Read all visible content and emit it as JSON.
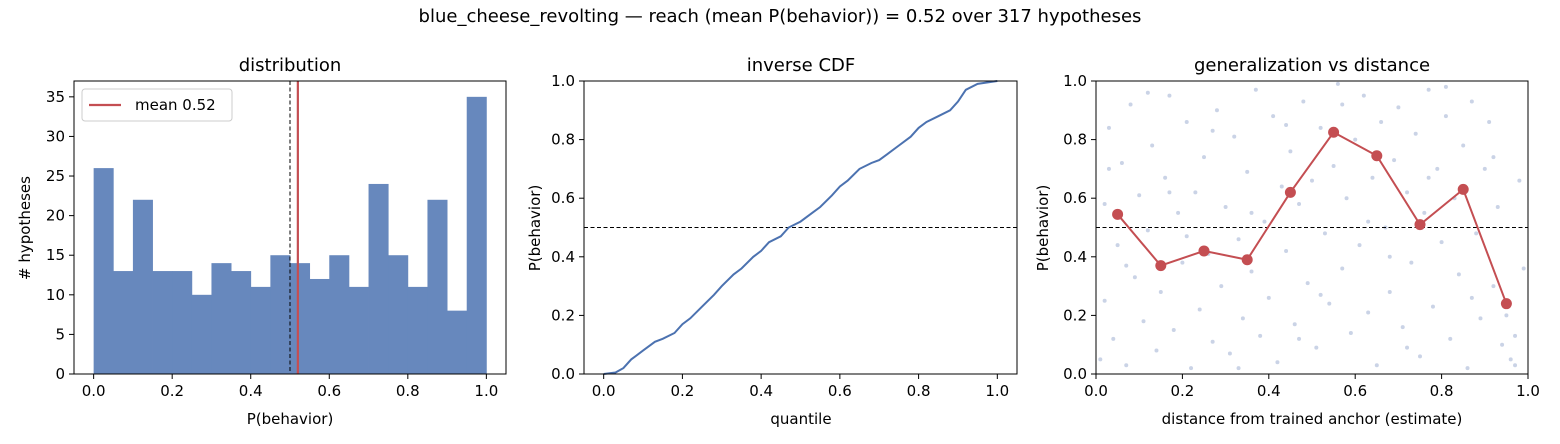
{
  "figure": {
    "suptitle": "blue_cheese_revolting  —  reach (mean P(behavior)) = 0.52  over 317 hypotheses"
  },
  "chart_data": [
    {
      "type": "bar",
      "title": "distribution",
      "xlabel": "P(behavior)",
      "ylabel": "# hypotheses",
      "bin_edges": [
        0.0,
        0.05,
        0.1,
        0.15,
        0.2,
        0.25,
        0.3,
        0.35,
        0.4,
        0.45,
        0.5,
        0.55,
        0.6,
        0.65,
        0.7,
        0.75,
        0.8,
        0.85,
        0.9,
        0.95,
        1.0
      ],
      "values": [
        26,
        13,
        22,
        13,
        13,
        10,
        14,
        13,
        11,
        15,
        14,
        12,
        15,
        11,
        24,
        15,
        11,
        22,
        8,
        35
      ],
      "xlim": [
        -0.05,
        1.05
      ],
      "ylim": [
        0,
        37
      ],
      "xticks": [
        "0.0",
        "0.2",
        "0.4",
        "0.6",
        "0.8",
        "1.0"
      ],
      "yticks": [
        "0",
        "5",
        "10",
        "15",
        "20",
        "25",
        "30",
        "35"
      ],
      "bar_color": "#6788bd",
      "mean_line": {
        "x": 0.52,
        "color": "#c44e52",
        "legend": "mean 0.52"
      },
      "reference_line": {
        "x": 0.5,
        "style": "dashed"
      },
      "legend_position": "upper-left",
      "grid": false
    },
    {
      "type": "line",
      "title": "inverse CDF",
      "xlabel": "quantile",
      "ylabel": "P(behavior)",
      "xlim": [
        -0.05,
        1.05
      ],
      "ylim": [
        0,
        1.0
      ],
      "xticks": [
        "0.0",
        "0.2",
        "0.4",
        "0.6",
        "0.8",
        "1.0"
      ],
      "yticks": [
        "0.0",
        "0.2",
        "0.4",
        "0.6",
        "0.8",
        "1.0"
      ],
      "series": [
        {
          "color": "#4c72b0",
          "x": [
            0.0,
            0.03,
            0.05,
            0.07,
            0.1,
            0.13,
            0.15,
            0.18,
            0.2,
            0.22,
            0.25,
            0.28,
            0.3,
            0.33,
            0.35,
            0.38,
            0.4,
            0.42,
            0.45,
            0.47,
            0.5,
            0.53,
            0.55,
            0.58,
            0.6,
            0.62,
            0.65,
            0.68,
            0.7,
            0.72,
            0.75,
            0.78,
            0.8,
            0.82,
            0.85,
            0.88,
            0.9,
            0.92,
            0.95,
            1.0
          ],
          "y": [
            0.0,
            0.005,
            0.02,
            0.05,
            0.08,
            0.11,
            0.12,
            0.14,
            0.17,
            0.19,
            0.23,
            0.27,
            0.3,
            0.34,
            0.36,
            0.4,
            0.42,
            0.45,
            0.47,
            0.5,
            0.52,
            0.55,
            0.57,
            0.61,
            0.64,
            0.66,
            0.7,
            0.72,
            0.73,
            0.75,
            0.78,
            0.81,
            0.84,
            0.86,
            0.88,
            0.9,
            0.93,
            0.97,
            0.99,
            1.0
          ]
        }
      ],
      "reference_line": {
        "y": 0.5,
        "style": "dashed"
      },
      "grid": false
    },
    {
      "type": "scatter",
      "title": "generalization vs distance",
      "xlabel": "distance from trained anchor (estimate)",
      "ylabel": "P(behavior)",
      "xlim": [
        0.0,
        1.0
      ],
      "ylim": [
        0.0,
        1.0
      ],
      "xticks": [
        "0.0",
        "0.2",
        "0.4",
        "0.6",
        "0.8",
        "1.0"
      ],
      "yticks": [
        "0.0",
        "0.2",
        "0.4",
        "0.6",
        "0.8",
        "1.0"
      ],
      "binned_series": {
        "color": "#c44e52",
        "x": [
          0.05,
          0.15,
          0.25,
          0.35,
          0.45,
          0.55,
          0.65,
          0.75,
          0.85,
          0.95
        ],
        "y": [
          0.545,
          0.37,
          0.42,
          0.39,
          0.62,
          0.825,
          0.745,
          0.51,
          0.63,
          0.24
        ]
      },
      "scatter_color": "#b8c4de",
      "scatter_points": [
        [
          0.01,
          0.05
        ],
        [
          0.02,
          0.25
        ],
        [
          0.02,
          0.58
        ],
        [
          0.03,
          0.84
        ],
        [
          0.04,
          0.12
        ],
        [
          0.05,
          0.44
        ],
        [
          0.06,
          0.72
        ],
        [
          0.07,
          0.03
        ],
        [
          0.08,
          0.92
        ],
        [
          0.09,
          0.33
        ],
        [
          0.1,
          0.61
        ],
        [
          0.11,
          0.18
        ],
        [
          0.12,
          0.49
        ],
        [
          0.13,
          0.78
        ],
        [
          0.14,
          0.08
        ],
        [
          0.15,
          0.28
        ],
        [
          0.16,
          0.67
        ],
        [
          0.17,
          0.95
        ],
        [
          0.18,
          0.15
        ],
        [
          0.19,
          0.55
        ],
        [
          0.2,
          0.38
        ],
        [
          0.21,
          0.86
        ],
        [
          0.22,
          0.02
        ],
        [
          0.23,
          0.62
        ],
        [
          0.24,
          0.22
        ],
        [
          0.25,
          0.74
        ],
        [
          0.26,
          0.41
        ],
        [
          0.27,
          0.11
        ],
        [
          0.28,
          0.9
        ],
        [
          0.29,
          0.3
        ],
        [
          0.3,
          0.57
        ],
        [
          0.31,
          0.07
        ],
        [
          0.32,
          0.81
        ],
        [
          0.33,
          0.46
        ],
        [
          0.34,
          0.19
        ],
        [
          0.35,
          0.69
        ],
        [
          0.36,
          0.35
        ],
        [
          0.37,
          0.97
        ],
        [
          0.38,
          0.13
        ],
        [
          0.39,
          0.52
        ],
        [
          0.4,
          0.26
        ],
        [
          0.41,
          0.88
        ],
        [
          0.42,
          0.04
        ],
        [
          0.43,
          0.64
        ],
        [
          0.44,
          0.42
        ],
        [
          0.45,
          0.76
        ],
        [
          0.46,
          0.17
        ],
        [
          0.47,
          0.58
        ],
        [
          0.48,
          0.93
        ],
        [
          0.49,
          0.31
        ],
        [
          0.5,
          0.66
        ],
        [
          0.51,
          0.09
        ],
        [
          0.52,
          0.84
        ],
        [
          0.53,
          0.48
        ],
        [
          0.54,
          0.24
        ],
        [
          0.55,
          0.71
        ],
        [
          0.56,
          0.99
        ],
        [
          0.57,
          0.36
        ],
        [
          0.58,
          0.6
        ],
        [
          0.59,
          0.14
        ],
        [
          0.6,
          0.8
        ],
        [
          0.61,
          0.44
        ],
        [
          0.62,
          0.95
        ],
        [
          0.63,
          0.21
        ],
        [
          0.64,
          0.67
        ],
        [
          0.65,
          0.03
        ],
        [
          0.66,
          0.86
        ],
        [
          0.67,
          0.5
        ],
        [
          0.68,
          0.28
        ],
        [
          0.69,
          0.73
        ],
        [
          0.7,
          0.91
        ],
        [
          0.71,
          0.16
        ],
        [
          0.72,
          0.62
        ],
        [
          0.73,
          0.38
        ],
        [
          0.74,
          0.82
        ],
        [
          0.75,
          0.06
        ],
        [
          0.76,
          0.55
        ],
        [
          0.77,
          0.97
        ],
        [
          0.78,
          0.23
        ],
        [
          0.79,
          0.7
        ],
        [
          0.8,
          0.45
        ],
        [
          0.81,
          0.88
        ],
        [
          0.82,
          0.12
        ],
        [
          0.83,
          0.6
        ],
        [
          0.84,
          0.34
        ],
        [
          0.85,
          0.78
        ],
        [
          0.86,
          0.02
        ],
        [
          0.87,
          0.93
        ],
        [
          0.88,
          0.48
        ],
        [
          0.89,
          0.19
        ],
        [
          0.9,
          0.7
        ],
        [
          0.91,
          0.86
        ],
        [
          0.92,
          0.3
        ],
        [
          0.93,
          0.57
        ],
        [
          0.94,
          0.1
        ],
        [
          0.95,
          0.2
        ],
        [
          0.96,
          0.05
        ],
        [
          0.97,
          0.13
        ],
        [
          0.98,
          0.66
        ],
        [
          0.99,
          0.36
        ],
        [
          0.03,
          0.7
        ],
        [
          0.12,
          0.96
        ],
        [
          0.21,
          0.47
        ],
        [
          0.33,
          0.02
        ],
        [
          0.44,
          0.85
        ],
        [
          0.52,
          0.27
        ],
        [
          0.63,
          0.52
        ],
        [
          0.72,
          0.09
        ],
        [
          0.81,
          0.98
        ],
        [
          0.92,
          0.74
        ],
        [
          0.07,
          0.37
        ],
        [
          0.17,
          0.62
        ],
        [
          0.27,
          0.83
        ],
        [
          0.36,
          0.55
        ],
        [
          0.47,
          0.12
        ],
        [
          0.57,
          0.92
        ],
        [
          0.68,
          0.4
        ],
        [
          0.77,
          0.67
        ],
        [
          0.87,
          0.26
        ],
        [
          0.97,
          0.03
        ]
      ],
      "reference_line": {
        "y": 0.5,
        "style": "dashed"
      },
      "grid": false
    }
  ]
}
